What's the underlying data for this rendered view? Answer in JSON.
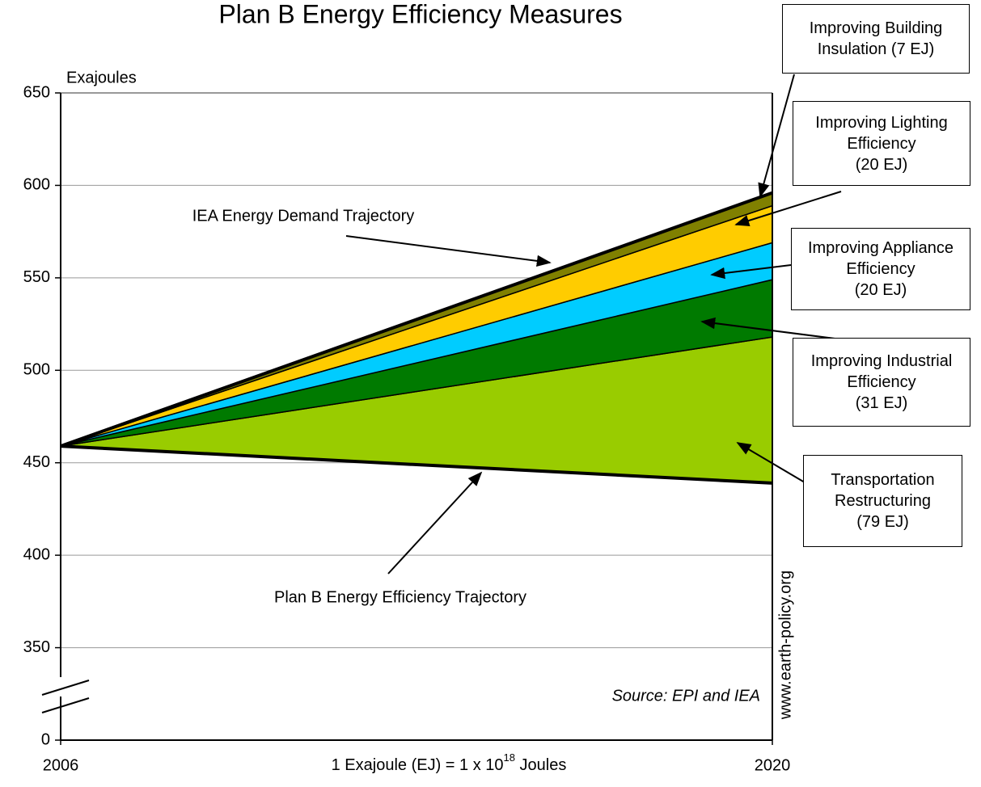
{
  "chart_data": {
    "type": "stacked_area",
    "title": "Plan B Energy Efficiency Measures",
    "y_label": "Exajoules",
    "x_label": [
      "1 Exajoule (EJ) = 1 x 10",
      "18",
      " Joules"
    ],
    "x": [
      2006,
      2020
    ],
    "xlim": [
      2006,
      2020
    ],
    "xticks": [
      2006,
      2020
    ],
    "ylim": [
      0,
      650
    ],
    "yticks": [
      0,
      350,
      400,
      450,
      500,
      550,
      600,
      650
    ],
    "y_axis_break": [
      0,
      300
    ],
    "grid": true,
    "series": [
      {
        "name": "Plan B Energy Efficiency Trajectory",
        "color": "#000000",
        "values": [
          459,
          439
        ]
      },
      {
        "name": "Transportation Restructuring",
        "color": "#99cc00",
        "values": [
          0,
          79
        ],
        "value_labels": [
          null,
          "(79 EJ)"
        ]
      },
      {
        "name": "Improving Industrial Efficiency",
        "color": "#007a00",
        "values": [
          0,
          31
        ],
        "value_labels": [
          null,
          "(31 EJ)"
        ]
      },
      {
        "name": "Improving Appliance Efficiency",
        "color": "#00ccff",
        "values": [
          0,
          20
        ],
        "value_labels": [
          null,
          "(20 EJ)"
        ]
      },
      {
        "name": "Improving Lighting Efficiency",
        "color": "#ffcc00",
        "values": [
          0,
          20
        ],
        "value_labels": [
          null,
          "(20 EJ)"
        ]
      },
      {
        "name": "Improving Building Insulation",
        "color": "#808000",
        "values": [
          0,
          7
        ],
        "value_labels": [
          null,
          "(7 EJ)"
        ]
      }
    ],
    "annotations": [
      {
        "text": "IEA Energy Demand Trajectory"
      }
    ],
    "source": "Source: EPI and IEA",
    "website": "www.earth-policy.org"
  }
}
